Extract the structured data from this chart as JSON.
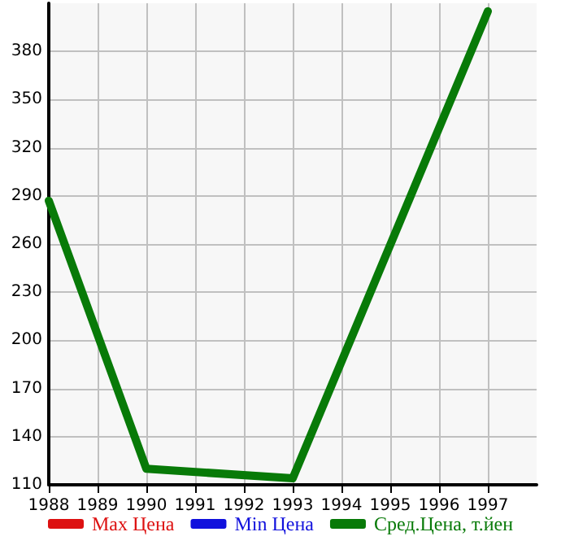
{
  "chart_data": {
    "type": "line",
    "x": [
      1988,
      1990,
      1993,
      1997
    ],
    "xlim": [
      1988,
      1998
    ],
    "xticks": [
      1988,
      1989,
      1990,
      1991,
      1992,
      1993,
      1994,
      1995,
      1996,
      1997
    ],
    "ylim": [
      110,
      410
    ],
    "yticks": [
      110,
      140,
      170,
      200,
      230,
      260,
      290,
      320,
      350,
      380
    ],
    "grid": true,
    "legend": "bottom",
    "marker": "none",
    "line_style": "solid",
    "series": [
      {
        "name": "Max Цена",
        "color": "#dd1111",
        "values": [
          null,
          null,
          null,
          null
        ]
      },
      {
        "name": "Min Цена",
        "color": "#1111dd",
        "values": [
          null,
          null,
          null,
          null
        ]
      },
      {
        "name": "Сред.Цена, т.йен",
        "color": "#087a08",
        "values": [
          287,
          120,
          114,
          405
        ]
      }
    ]
  }
}
